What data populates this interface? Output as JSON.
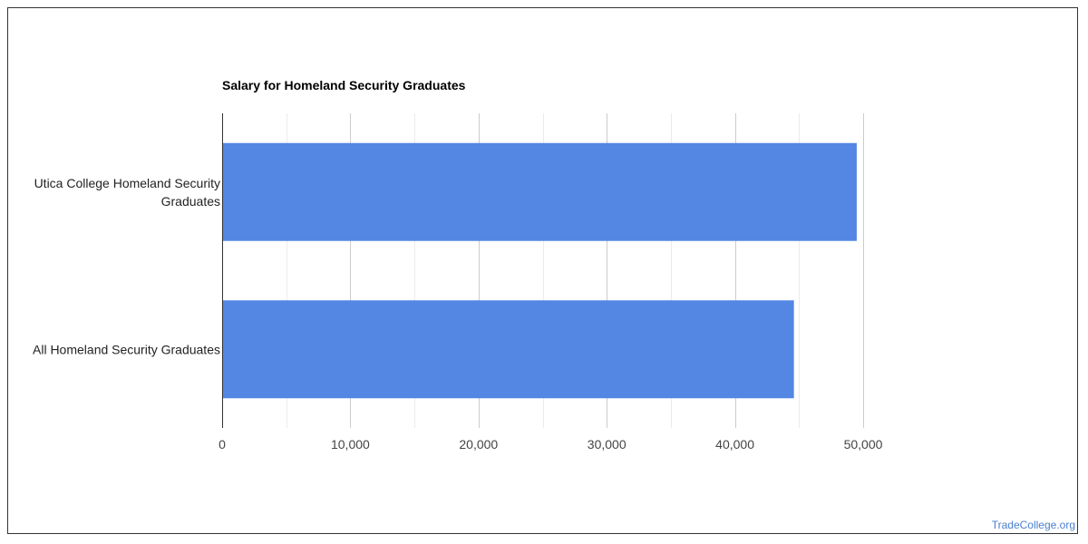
{
  "watermark": "TradeCollege.org",
  "chart_data": {
    "type": "bar",
    "orientation": "horizontal",
    "title": "Salary for Homeland Security Graduates",
    "categories": [
      [
        "Utica College Homeland Security",
        "Graduates"
      ],
      [
        "All Homeland Security Graduates"
      ]
    ],
    "values": [
      49500,
      44600
    ],
    "xlim": [
      0,
      50000
    ],
    "x_ticks": [
      0,
      10000,
      20000,
      30000,
      40000,
      50000
    ],
    "x_tick_labels": [
      "0",
      "10,000",
      "20,000",
      "30,000",
      "40,000",
      "50,000"
    ],
    "minor_gridlines": true,
    "grid": true,
    "legend": "none",
    "bar_color": "#5486e3",
    "gridline_color": "#d9d9d9",
    "axis_color": "#333333"
  }
}
